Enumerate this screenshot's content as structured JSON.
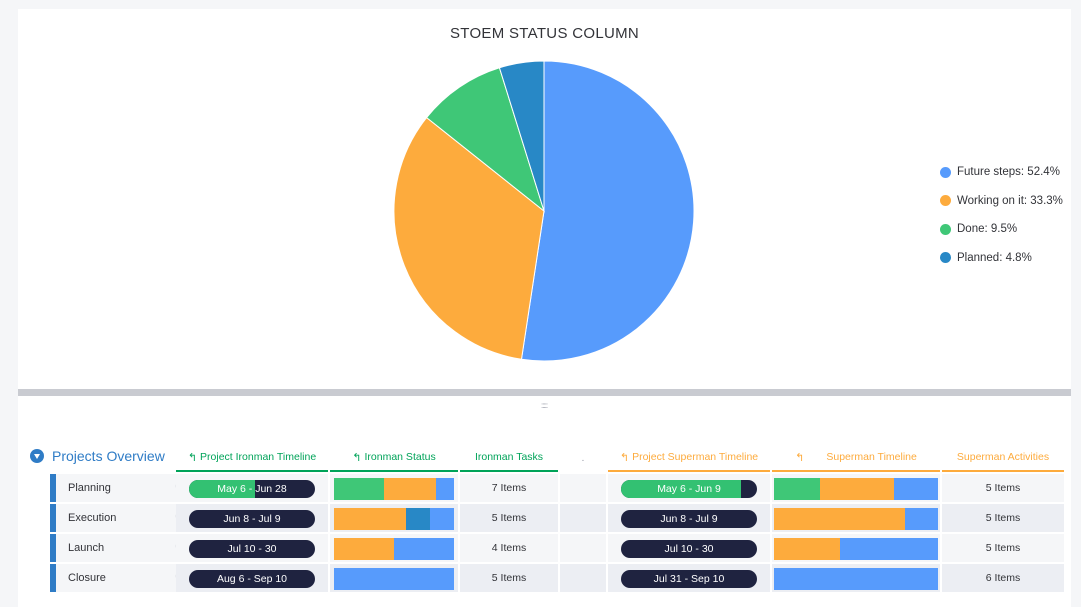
{
  "chart": {
    "title": "STOEM STATUS COLUMN"
  },
  "chart_data": {
    "type": "pie",
    "title": "STOEM STATUS COLUMN",
    "slices": [
      {
        "label": "Future steps: 52.4%",
        "name": "Future steps",
        "value": 52.4,
        "color": "#579bfc"
      },
      {
        "label": "Working on it: 33.3%",
        "name": "Working on it",
        "value": 33.3,
        "color": "#fdab3d"
      },
      {
        "label": "Done: 9.5%",
        "name": "Done",
        "value": 9.5,
        "color": "#3fc777"
      },
      {
        "label": "Planned: 4.8%",
        "name": "Planned",
        "value": 4.8,
        "color": "#2888c6"
      }
    ],
    "legend_position": "right"
  },
  "board": {
    "group_title": "Projects Overview",
    "columns": {
      "ironman_timeline": "Project Ironman Timeline",
      "ironman_status": "Ironman Status",
      "ironman_tasks": "Ironman Tasks",
      "separator": ".",
      "superman_timeline_project": "Project Superman Timeline",
      "superman_timeline": "Superman Timeline",
      "superman_activities": "Superman Activities"
    },
    "colors": {
      "done": "#3fc777",
      "working": "#fdab3d",
      "planned": "#2888c6",
      "future": "#579bfc",
      "timeline_dark": "#1f2340",
      "timeline_progress": "#33c172"
    },
    "rows": [
      {
        "name": "Planning",
        "ironman_timeline": "May 6 - Jun 28",
        "ironman_progress": 0.52,
        "ironman_status": [
          {
            "s": "done",
            "v": 0.42
          },
          {
            "s": "working",
            "v": 0.43
          },
          {
            "s": "future",
            "v": 0.15
          }
        ],
        "ironman_tasks": "7 Items",
        "superman_timeline": "May 6 - Jun 9",
        "superman_progress": 0.88,
        "superman_status": [
          {
            "s": "done",
            "v": 0.28
          },
          {
            "s": "working",
            "v": 0.45
          },
          {
            "s": "future",
            "v": 0.27
          }
        ],
        "superman_activities": "5 Items"
      },
      {
        "name": "Execution",
        "ironman_timeline": "Jun 8 - Jul 9",
        "ironman_progress": 0,
        "ironman_status": [
          {
            "s": "working",
            "v": 0.6
          },
          {
            "s": "planned",
            "v": 0.2
          },
          {
            "s": "future",
            "v": 0.2
          }
        ],
        "ironman_tasks": "5 Items",
        "superman_timeline": "Jun 8 - Jul 9",
        "superman_progress": 0,
        "superman_status": [
          {
            "s": "working",
            "v": 0.8
          },
          {
            "s": "future",
            "v": 0.2
          }
        ],
        "superman_activities": "5 Items"
      },
      {
        "name": "Launch",
        "ironman_timeline": "Jul 10 - 30",
        "ironman_progress": 0,
        "ironman_status": [
          {
            "s": "working",
            "v": 0.5
          },
          {
            "s": "future",
            "v": 0.5
          }
        ],
        "ironman_tasks": "4 Items",
        "superman_timeline": "Jul 10 - 30",
        "superman_progress": 0,
        "superman_status": [
          {
            "s": "working",
            "v": 0.4
          },
          {
            "s": "future",
            "v": 0.6
          }
        ],
        "superman_activities": "5 Items"
      },
      {
        "name": "Closure",
        "ironman_timeline": "Aug 6 - Sep 10",
        "ironman_progress": 0,
        "ironman_status": [
          {
            "s": "future",
            "v": 1.0
          }
        ],
        "ironman_tasks": "5 Items",
        "superman_timeline": "Jul 31 - Sep 10",
        "superman_progress": 0,
        "superman_status": [
          {
            "s": "future",
            "v": 1.0
          }
        ],
        "superman_activities": "6 Items"
      }
    ]
  }
}
